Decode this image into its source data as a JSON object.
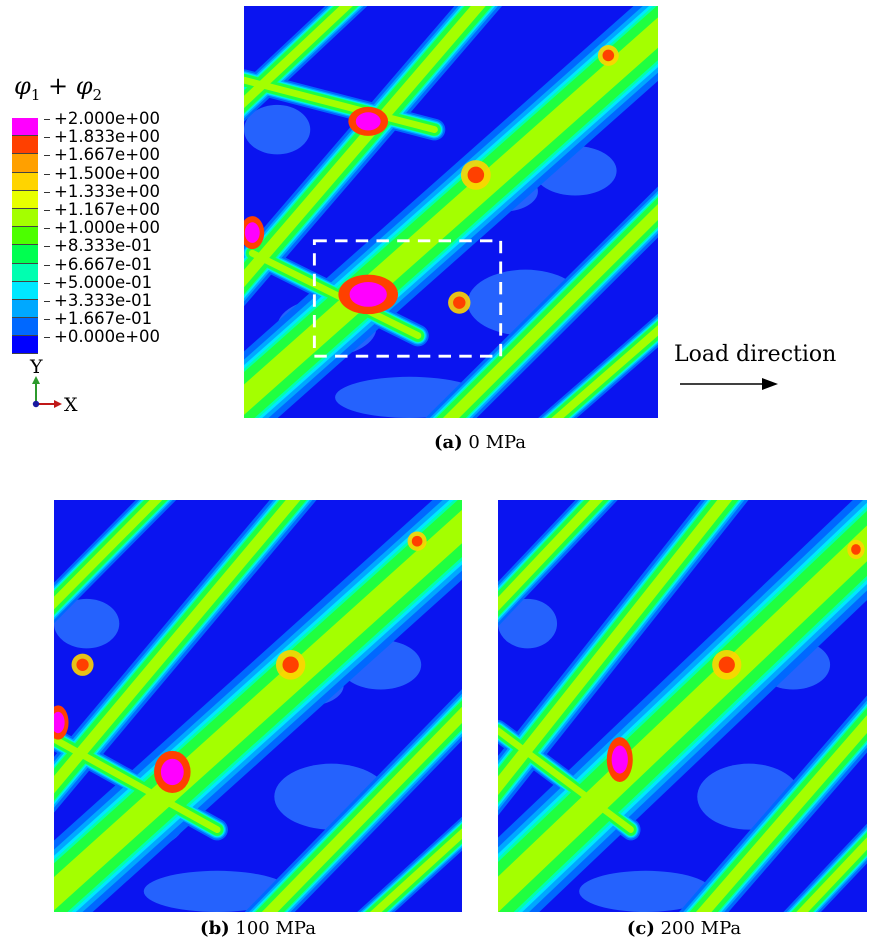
{
  "legend": {
    "title_var": "φ",
    "title_sub1": "1",
    "title_plus": " + ",
    "title_sub2": "2",
    "colors": [
      "#ff00ff",
      "#ff4000",
      "#ffa000",
      "#ffd400",
      "#e8ff00",
      "#a4ff00",
      "#4cff00",
      "#00ff50",
      "#00ffb0",
      "#00e8ff",
      "#00a8ff",
      "#0068ff",
      "#0000ff"
    ],
    "labels": [
      "+2.000e+00",
      "+1.833e+00",
      "+1.667e+00",
      "+1.500e+00",
      "+1.333e+00",
      "+1.167e+00",
      "+1.000e+00",
      "+8.333e-01",
      "+6.667e-01",
      "+5.000e-01",
      "+3.333e-01",
      "+1.667e-01",
      "+0.000e+00"
    ]
  },
  "axes": {
    "y": "Y",
    "x": "X"
  },
  "annotation": {
    "load_direction": "Load direction"
  },
  "panels": [
    {
      "letter": "(a)",
      "pressure": "0 MPa"
    },
    {
      "letter": "(b)",
      "pressure": "100 MPa"
    },
    {
      "letter": "(c)",
      "pressure": "200 MPa"
    }
  ]
}
